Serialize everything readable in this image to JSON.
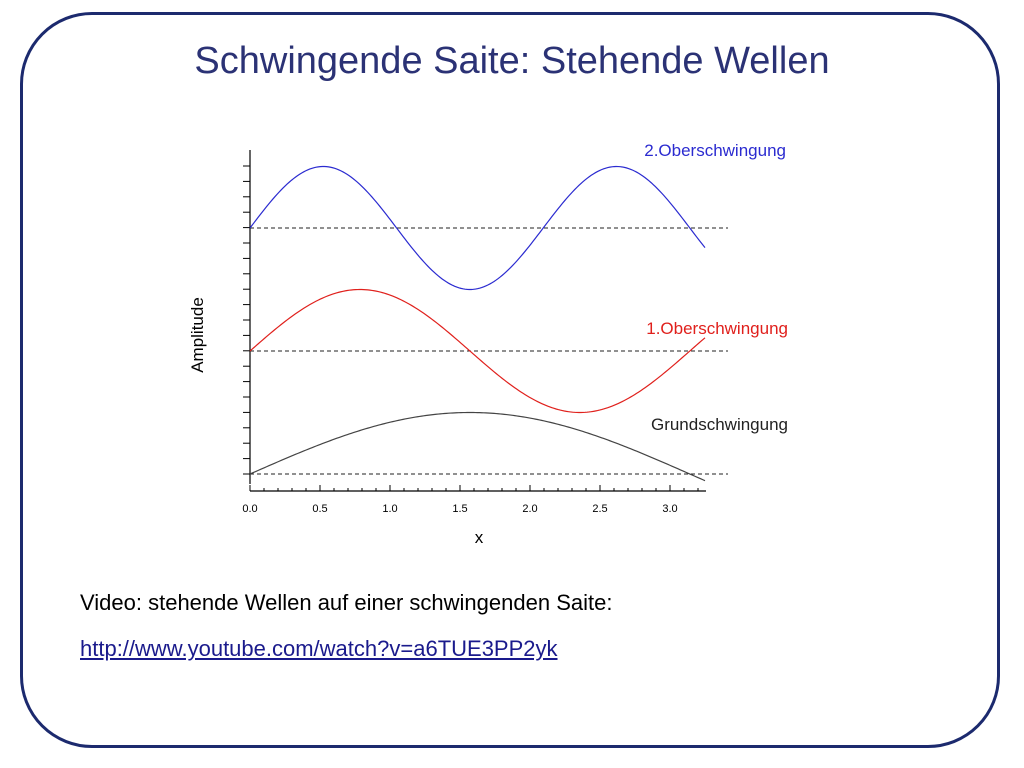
{
  "slide": {
    "title": "Schwingende Saite: Stehende Wellen",
    "caption": "Video: stehende Wellen auf einer schwingenden Saite:",
    "link": "http://www.youtube.com/watch?v=a6TUE3PP2yk"
  },
  "colors": {
    "frame": "#1c2a6e",
    "title": "#2b3275",
    "link": "#1a1a8c"
  },
  "chart_data": {
    "type": "line",
    "xlabel": "x",
    "ylabel": "Amplitude",
    "xlim": [
      0,
      3.25
    ],
    "xticks": [
      "0.0",
      "0.5",
      "1.0",
      "1.5",
      "2.0",
      "2.5",
      "3.0"
    ],
    "grid": false,
    "series": [
      {
        "name": "Grundschwingung",
        "color": "#444444",
        "offset": 0,
        "amplitude": 1,
        "freq": 1,
        "x_end": 3.25
      },
      {
        "name": "1.Oberschwingung",
        "color": "#e0201c",
        "offset": 2,
        "amplitude": 1,
        "freq": 2,
        "x_end": 3.25
      },
      {
        "name": "2.Oberschwingung",
        "color": "#2b2bd0",
        "offset": 4,
        "amplitude": 1,
        "freq": 3,
        "x_end": 3.25
      }
    ]
  }
}
